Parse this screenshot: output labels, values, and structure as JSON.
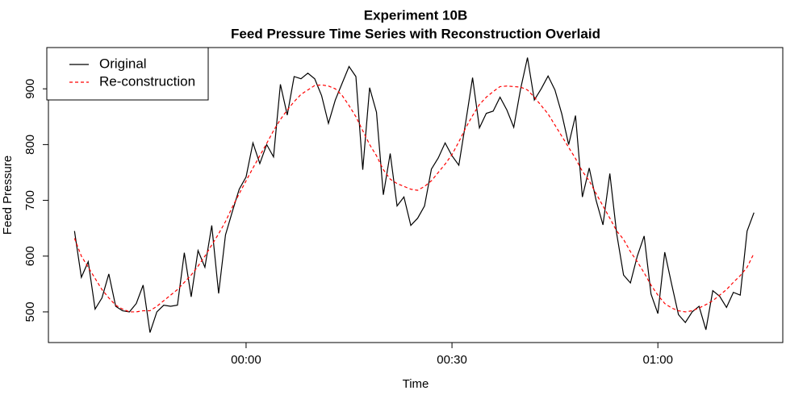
{
  "chart_data": {
    "type": "line",
    "title": "Experiment 10B",
    "subtitle": "Feed Pressure Time Series with Reconstruction Overlaid",
    "x_label": "Time",
    "y_label": "Feed Pressure",
    "x": [
      -25,
      -24,
      -23,
      -22,
      -21,
      -20,
      -19,
      -18,
      -17,
      -16,
      -15,
      -14,
      -13,
      -12,
      -11,
      -10,
      -9,
      -8,
      -7,
      -6,
      -5,
      -4,
      -3,
      -2,
      -1,
      0,
      1,
      2,
      3,
      4,
      5,
      6,
      7,
      8,
      9,
      10,
      11,
      12,
      13,
      14,
      15,
      16,
      17,
      18,
      19,
      20,
      21,
      22,
      23,
      24,
      25,
      26,
      27,
      28,
      29,
      30,
      31,
      32,
      33,
      34,
      35,
      36,
      37,
      38,
      39,
      40,
      41,
      42,
      43,
      44,
      45,
      46,
      47,
      48,
      49,
      50,
      51,
      52,
      53,
      54,
      55,
      56,
      57,
      58,
      59,
      60,
      61,
      62,
      63,
      64,
      65,
      66,
      67,
      68,
      69,
      70,
      71,
      72,
      73,
      74
    ],
    "series": [
      {
        "name": "Original",
        "color": "#000000",
        "dash": "solid",
        "values": [
          645,
          562,
          590,
          505,
          525,
          568,
          510,
          502,
          500,
          515,
          548,
          463,
          500,
          512,
          510,
          512,
          606,
          527,
          610,
          580,
          655,
          533,
          638,
          680,
          720,
          742,
          803,
          766,
          800,
          778,
          908,
          853,
          922,
          918,
          928,
          918,
          888,
          838,
          880,
          910,
          940,
          922,
          755,
          902,
          858,
          710,
          784,
          690,
          706,
          655,
          668,
          690,
          756,
          776,
          803,
          780,
          763,
          840,
          920,
          830,
          856,
          860,
          885,
          862,
          831,
          900,
          956,
          880,
          900,
          923,
          898,
          855,
          800,
          852,
          706,
          758,
          700,
          656,
          748,
          640,
          566,
          552,
          600,
          636,
          532,
          497,
          607,
          550,
          495,
          481,
          500,
          510,
          468,
          538,
          528,
          508,
          535,
          530,
          645,
          678
        ]
      },
      {
        "name": "Re-construction",
        "color": "#ff0000",
        "dash": "dashed",
        "values": [
          632,
          600,
          580,
          560,
          540,
          525,
          512,
          505,
          500,
          500,
          502,
          502,
          510,
          520,
          530,
          540,
          553,
          566,
          582,
          600,
          620,
          640,
          662,
          688,
          712,
          735,
          758,
          780,
          802,
          825,
          845,
          862,
          877,
          890,
          898,
          906,
          907,
          905,
          900,
          888,
          870,
          850,
          825,
          800,
          780,
          755,
          738,
          730,
          725,
          720,
          718,
          725,
          735,
          750,
          765,
          782,
          805,
          830,
          852,
          872,
          885,
          895,
          904,
          905,
          904,
          903,
          898,
          885,
          870,
          855,
          835,
          815,
          795,
          775,
          752,
          735,
          712,
          690,
          668,
          645,
          630,
          608,
          590,
          570,
          548,
          530,
          515,
          507,
          502,
          500,
          502,
          507,
          513,
          520,
          530,
          540,
          553,
          565,
          580,
          605
        ]
      }
    ],
    "xlim": [
      -28.8,
      78.2
    ],
    "xticks": [
      {
        "value": 0,
        "label": "00:00"
      },
      {
        "value": 30,
        "label": "00:30"
      },
      {
        "value": 60,
        "label": "01:00"
      }
    ],
    "ylim": [
      445,
      974
    ],
    "yticks": [
      500,
      600,
      700,
      800,
      900
    ],
    "grid": false,
    "legend": "top-left"
  }
}
